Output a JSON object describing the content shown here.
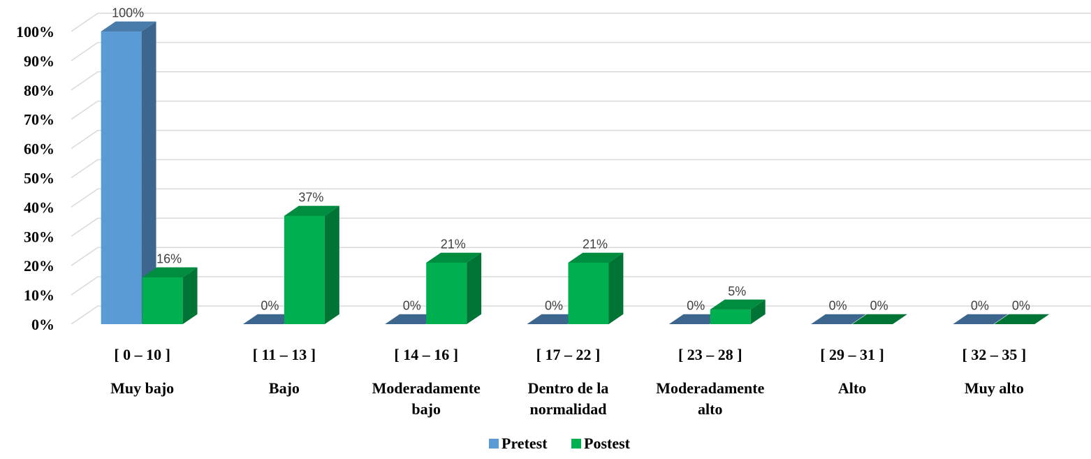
{
  "chart_data": {
    "type": "bar",
    "three_d": true,
    "categories": [
      {
        "range": "[ 0 – 10 ]",
        "name_lines": [
          "Muy bajo"
        ]
      },
      {
        "range": "[ 11 – 13 ]",
        "name_lines": [
          "Bajo"
        ]
      },
      {
        "range": "[ 14 – 16 ]",
        "name_lines": [
          "Moderadamente",
          "bajo"
        ]
      },
      {
        "range": "[ 17 – 22 ]",
        "name_lines": [
          "Dentro de la",
          "normalidad"
        ]
      },
      {
        "range": "[ 23 – 28 ]",
        "name_lines": [
          "Moderadamente",
          "alto"
        ]
      },
      {
        "range": "[ 29 – 31 ]",
        "name_lines": [
          "Alto"
        ]
      },
      {
        "range": "[ 32 – 35 ]",
        "name_lines": [
          "Muy alto"
        ]
      }
    ],
    "series": [
      {
        "name": "Pretest",
        "color": "#5B9BD5",
        "values": [
          100,
          0,
          0,
          0,
          0,
          0,
          0
        ],
        "labels": [
          "100%",
          "0%",
          "0%",
          "0%",
          "0%",
          "0%",
          "0%"
        ]
      },
      {
        "name": "Postest",
        "color": "#00B050",
        "values": [
          16,
          37,
          21,
          21,
          5,
          0,
          0
        ],
        "labels": [
          "16%",
          "37%",
          "21%",
          "21%",
          "5%",
          "0%",
          "0%"
        ]
      }
    ],
    "yticks": [
      "0%",
      "10%",
      "20%",
      "30%",
      "40%",
      "50%",
      "60%",
      "70%",
      "80%",
      "90%",
      "100%"
    ],
    "ylim": [
      0,
      100
    ],
    "grid": true,
    "legend": "bottom"
  }
}
